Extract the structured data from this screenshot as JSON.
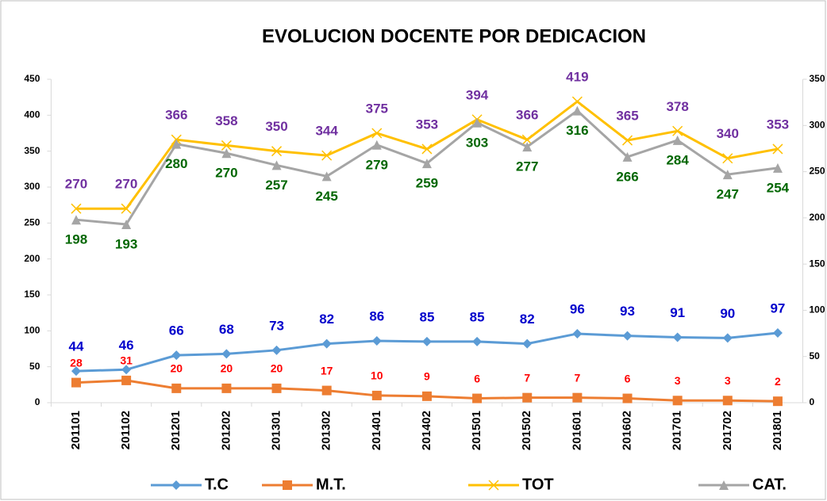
{
  "chart_data": {
    "type": "line",
    "title": "EVOLUCION DOCENTE POR DEDICACION",
    "categories": [
      "201101",
      "201102",
      "201201",
      "201202",
      "201301",
      "201302",
      "201401",
      "201402",
      "201501",
      "201502",
      "201601",
      "201602",
      "201701",
      "201702",
      "201801"
    ],
    "series": [
      {
        "name": "T.C",
        "color": "#5b9bd5",
        "label_color": "#0000cc",
        "marker": "diamond",
        "label_position": "above",
        "values": [
          44,
          46,
          66,
          68,
          73,
          82,
          86,
          85,
          85,
          82,
          96,
          93,
          91,
          90,
          97
        ]
      },
      {
        "name": "M.T.",
        "color": "#ed7d31",
        "label_color": "#ff0000",
        "marker": "square",
        "label_position": "above",
        "values": [
          28,
          31,
          20,
          20,
          20,
          17,
          10,
          9,
          6,
          7,
          7,
          6,
          3,
          3,
          2
        ]
      },
      {
        "name": "TOT",
        "color": "#ffc000",
        "label_color": "#7030a0",
        "marker": "x",
        "label_position": "above",
        "values": [
          270,
          270,
          366,
          358,
          350,
          344,
          375,
          353,
          394,
          366,
          419,
          365,
          378,
          340,
          353
        ]
      },
      {
        "name": "CAT.",
        "color": "#a5a5a5",
        "label_color": "#006600",
        "marker": "triangle",
        "label_position": "below",
        "axis": "y2",
        "values": [
          198,
          193,
          280,
          270,
          257,
          245,
          279,
          259,
          303,
          277,
          316,
          266,
          284,
          247,
          254
        ]
      }
    ],
    "ylim": [
      0,
      450
    ],
    "yticks": [
      0,
      50,
      100,
      150,
      200,
      250,
      300,
      350,
      400,
      450
    ],
    "y2lim": [
      0,
      350
    ],
    "y2ticks": [
      0,
      50,
      100,
      150,
      200,
      250,
      300,
      350
    ],
    "grid": false,
    "legend": "bottom"
  }
}
